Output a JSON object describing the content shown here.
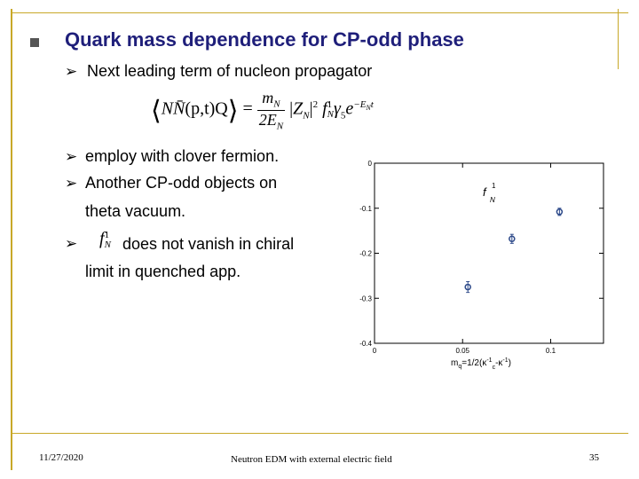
{
  "slide": {
    "title": "Quark mass dependence for CP-odd phase",
    "bullets": {
      "b1": "Next leading term of nucleon propagator",
      "b2": "employ with clover fermion.",
      "b3": "Another CP-odd objects on",
      "b3_cont": "theta vacuum.",
      "b4": "does not vanish in chiral",
      "b4_cont": "limit in quenched app."
    },
    "formula": {
      "lhs_nn": "NN̄",
      "lhs_args": "(p,t)Q",
      "num": "m",
      "num_sub": "N",
      "den": "2E",
      "den_sub": "N",
      "zn": "Z",
      "zn_sub": "N",
      "sq": "2",
      "f": "f",
      "f_sup": "1",
      "f_sub": "N",
      "gamma": "γ",
      "gamma_sub": "5",
      "exp_base": "e",
      "exp_sup": "−E",
      "exp_sup_sub": "N",
      "exp_sup_t": "t"
    },
    "inline_f": {
      "f": "f",
      "sup": "1",
      "sub": "N"
    },
    "footer": {
      "date": "11/27/2020",
      "center": "Neutron EDM with external electric field",
      "page": "35"
    },
    "colors": {
      "frame": "#c8a828",
      "title": "#1f1f7a",
      "bullet": "#555555",
      "point": "#2e4a8a"
    }
  },
  "chart_data": {
    "type": "scatter",
    "title": "",
    "legend_label": "f",
    "legend_sup": "1",
    "legend_sub": "N",
    "xlabel": "m",
    "xlabel_sub": "q",
    "xlabel_rest": "=1/2(κ",
    "xlabel_sup1": "-1",
    "xlabel_sub2": "c",
    "xlabel_tail": "-κ",
    "xlabel_sup2": "-1",
    "xlabel_end": ")",
    "xlim": [
      0,
      0.13
    ],
    "ylim": [
      -0.4,
      0
    ],
    "x_ticks": [
      {
        "v": 0,
        "label": "0"
      },
      {
        "v": 0.05,
        "label": "0.05"
      },
      {
        "v": 0.1,
        "label": "0.1"
      }
    ],
    "y_ticks": [
      {
        "v": 0,
        "label": "0"
      },
      {
        "v": -0.1,
        "label": "-0.1"
      },
      {
        "v": -0.2,
        "label": "-0.2"
      },
      {
        "v": -0.3,
        "label": "-0.3"
      },
      {
        "v": -0.4,
        "label": "-0.4"
      }
    ],
    "points": [
      {
        "x": 0.053,
        "y": -0.275,
        "err": 0.012
      },
      {
        "x": 0.078,
        "y": -0.168,
        "err": 0.01
      },
      {
        "x": 0.105,
        "y": -0.108,
        "err": 0.008
      }
    ]
  }
}
